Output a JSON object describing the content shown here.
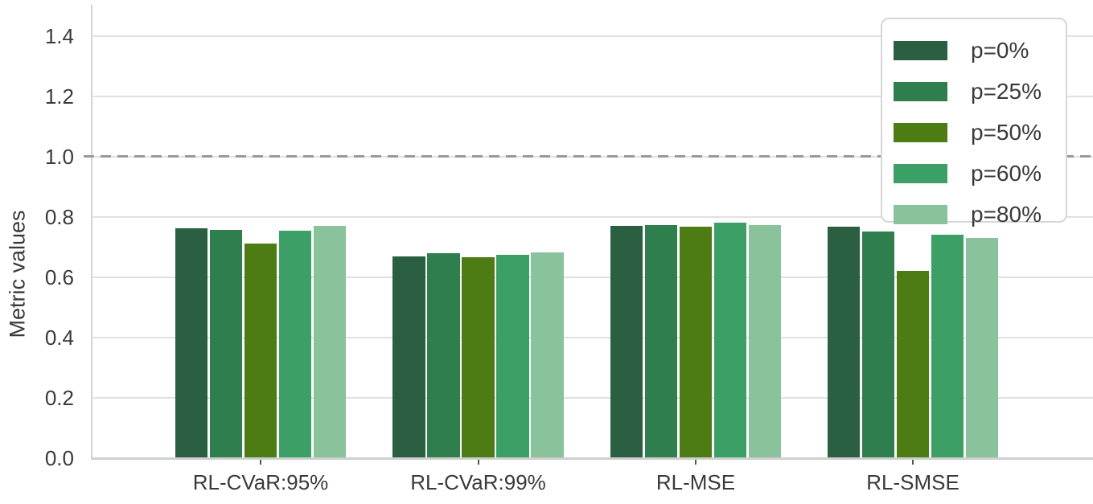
{
  "axes": {
    "ylabel": "Metric values",
    "ytick_labels": [
      "0.0",
      "0.2",
      "0.4",
      "0.6",
      "0.8",
      "1.0",
      "1.2",
      "1.4"
    ]
  },
  "chart_data": {
    "type": "bar",
    "title": "",
    "xlabel": "",
    "ylabel": "Metric values",
    "categories": [
      "RL-CVaR:95%",
      "RL-CVaR:99%",
      "RL-MSE",
      "RL-SMSE"
    ],
    "series": [
      {
        "name": "p=0%",
        "color": "#2b5f42",
        "values": [
          0.763,
          0.67,
          0.77,
          0.768
        ]
      },
      {
        "name": "p=25%",
        "color": "#2f7e4e",
        "values": [
          0.758,
          0.68,
          0.774,
          0.753
        ]
      },
      {
        "name": "p=50%",
        "color": "#4c7c13",
        "values": [
          0.713,
          0.668,
          0.769,
          0.621
        ]
      },
      {
        "name": "p=60%",
        "color": "#3b9f66",
        "values": [
          0.755,
          0.674,
          0.781,
          0.741
        ]
      },
      {
        "name": "p=80%",
        "color": "#8ac29c",
        "values": [
          0.772,
          0.682,
          0.773,
          0.73
        ]
      }
    ],
    "yticks": [
      0.0,
      0.2,
      0.4,
      0.6,
      0.8,
      1.0,
      1.2,
      1.4
    ],
    "ylim": [
      0.0,
      1.52
    ],
    "grid": true,
    "reference_line": {
      "y": 1.0,
      "style": "dashed",
      "color": "#999999"
    },
    "legend": {
      "position": "upper right",
      "entries": [
        "p=0%",
        "p=25%",
        "p=50%",
        "p=60%",
        "p=80%"
      ]
    }
  },
  "style": {
    "grid_color": "#e1e1e1",
    "spine_color": "#d4d4d4",
    "axis_color": "#cfcfcf",
    "text_color": "#3a3a3a",
    "reference_color": "#999999",
    "background": "#ffffff"
  }
}
